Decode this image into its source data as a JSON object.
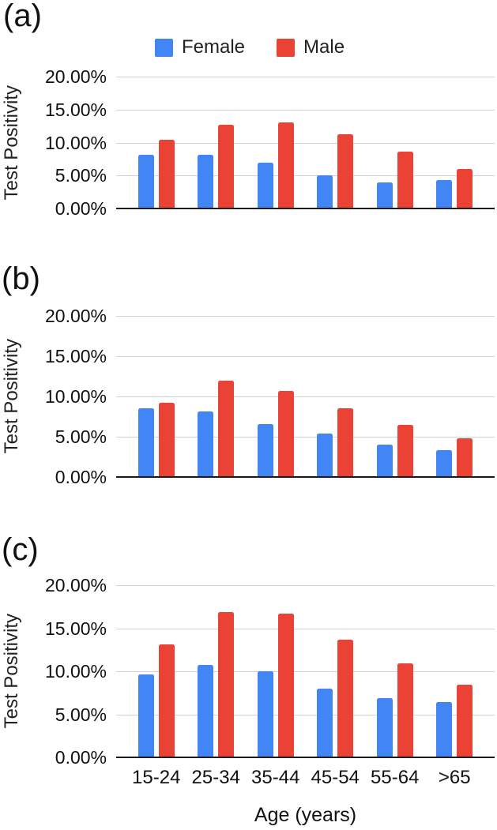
{
  "figure": {
    "y_axis_title": "Test Positivity",
    "x_axis_title": "Age (years)",
    "y_ticks": [
      "20.00%",
      "15.00%",
      "10.00%",
      "5.00%",
      "0.00%"
    ],
    "legend": {
      "items": [
        {
          "label": "Female",
          "color": "#4285F4"
        },
        {
          "label": "Male",
          "color": "#EA4335"
        }
      ]
    },
    "colors": {
      "female": "#4285F4",
      "male": "#EA4335",
      "gridline": "#d2d2d2",
      "axis_line": "#1a1a1a",
      "text": "#111111"
    },
    "panels": [
      {
        "label": "(a)"
      },
      {
        "label": "(b)"
      },
      {
        "label": "(c)"
      }
    ]
  },
  "chart_data": [
    {
      "type": "bar",
      "panel_label": "(a)",
      "categories": [
        "15-24",
        "25-34",
        "35-44",
        "45-54",
        "55-64",
        ">65"
      ],
      "series": [
        {
          "name": "Female",
          "color": "#4285F4",
          "values": [
            8.1,
            8.1,
            7.0,
            5.0,
            4.0,
            4.3
          ]
        },
        {
          "name": "Male",
          "color": "#EA4335",
          "values": [
            10.4,
            12.7,
            13.1,
            11.3,
            8.6,
            6.0
          ]
        }
      ],
      "xlabel": "Age (years)",
      "ylabel": "Test Positivity",
      "ylim": [
        0,
        20
      ],
      "y_tick_labels": [
        "20.00%",
        "15.00%",
        "10.00%",
        "5.00%",
        "0.00%"
      ],
      "grid": true,
      "legend_position": "top",
      "x_tick_labels_shown": false
    },
    {
      "type": "bar",
      "panel_label": "(b)",
      "categories": [
        "15-24",
        "25-34",
        "35-44",
        "45-54",
        "55-64",
        ">65"
      ],
      "series": [
        {
          "name": "Female",
          "color": "#4285F4",
          "values": [
            8.5,
            8.1,
            6.6,
            5.4,
            4.0,
            3.3
          ]
        },
        {
          "name": "Male",
          "color": "#EA4335",
          "values": [
            9.2,
            12.0,
            10.7,
            8.5,
            6.5,
            4.8
          ]
        }
      ],
      "xlabel": "Age (years)",
      "ylabel": "Test Positivity",
      "ylim": [
        0,
        20
      ],
      "y_tick_labels": [
        "20.00%",
        "15.00%",
        "10.00%",
        "5.00%",
        "0.00%"
      ],
      "grid": true,
      "legend_position": "none",
      "x_tick_labels_shown": false
    },
    {
      "type": "bar",
      "panel_label": "(c)",
      "categories": [
        "15-24",
        "25-34",
        "35-44",
        "45-54",
        "55-64",
        ">65"
      ],
      "series": [
        {
          "name": "Female",
          "color": "#4285F4",
          "values": [
            9.6,
            10.7,
            10.0,
            8.0,
            6.9,
            6.4
          ]
        },
        {
          "name": "Male",
          "color": "#EA4335",
          "values": [
            13.1,
            16.9,
            16.7,
            13.7,
            10.9,
            8.4
          ]
        }
      ],
      "xlabel": "Age (years)",
      "ylabel": "Test Positivity",
      "ylim": [
        0,
        20
      ],
      "y_tick_labels": [
        "20.00%",
        "15.00%",
        "10.00%",
        "5.00%",
        "0.00%"
      ],
      "grid": true,
      "legend_position": "none",
      "x_tick_labels_shown": true
    }
  ]
}
